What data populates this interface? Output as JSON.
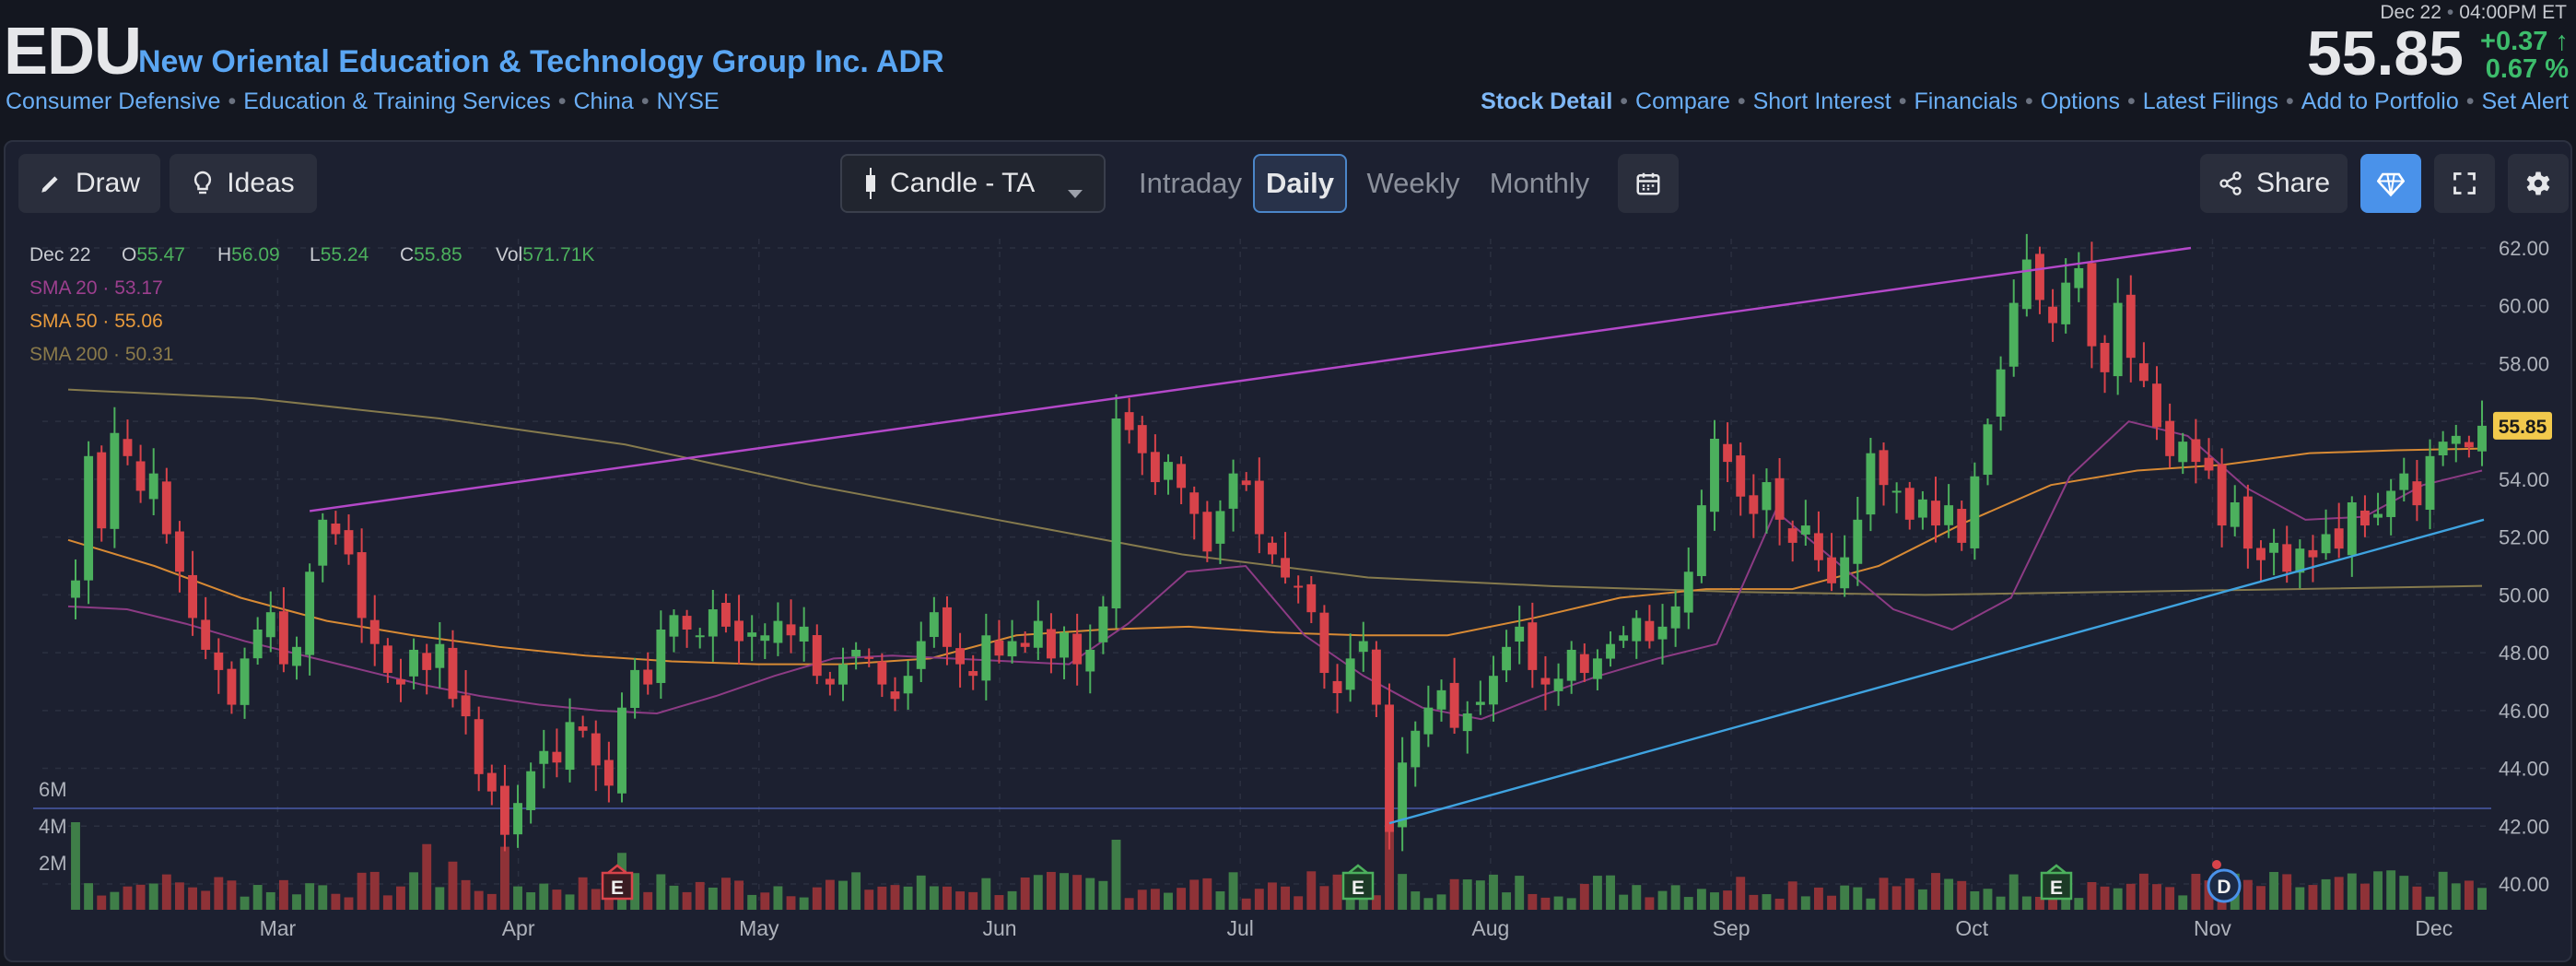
{
  "header": {
    "ticker": "EDU",
    "company": "New Oriental Education & Technology Group Inc. ADR",
    "breadcrumbs": [
      "Consumer Defensive",
      "Education & Training Services",
      "China",
      "NYSE"
    ],
    "date": "Dec 22",
    "time": "04:00PM ET",
    "price": "55.85",
    "change": "+0.37",
    "change_pct": "0.67 %",
    "links": [
      "Stock Detail",
      "Compare",
      "Short Interest",
      "Financials",
      "Options",
      "Latest Filings",
      "Add to Portfolio",
      "Set Alert"
    ]
  },
  "toolbar": {
    "draw": "Draw",
    "ideas": "Ideas",
    "chart_type": "Candle - TA",
    "tabs": [
      "Intraday",
      "Daily",
      "Weekly",
      "Monthly"
    ],
    "active_tab": "Daily",
    "share": "Share"
  },
  "legend": {
    "date": "Dec 22",
    "ohlc": [
      {
        "k": "O",
        "v": "55.47"
      },
      {
        "k": "H",
        "v": "56.09"
      },
      {
        "k": "L",
        "v": "55.24"
      },
      {
        "k": "C",
        "v": "55.85"
      },
      {
        "k": "Vol",
        "v": "571.71K"
      }
    ],
    "sma": [
      {
        "label": "SMA 20",
        "value": "53.17",
        "color": "#9c3f8e"
      },
      {
        "label": "SMA 50",
        "value": "55.06",
        "color": "#e89a3c"
      },
      {
        "label": "SMA 200",
        "value": "50.31",
        "color": "#8a7a4a"
      }
    ]
  },
  "chart_data": {
    "type": "candlestick",
    "price_axis": {
      "min": 40,
      "max": 62,
      "ticks": [
        "62.00",
        "60.00",
        "58.00",
        "56.00",
        "54.00",
        "52.00",
        "50.00",
        "48.00",
        "46.00",
        "44.00",
        "42.00",
        "40.00"
      ]
    },
    "volume_axis": {
      "ticks": [
        "6M",
        "4M",
        "2M"
      ]
    },
    "x_labels": [
      "Mar",
      "Apr",
      "May",
      "Jun",
      "Jul",
      "Aug",
      "Sep",
      "Oct",
      "Nov",
      "Dec"
    ],
    "last_price_label": "55.85",
    "colors": {
      "up": "#4cb05d",
      "down": "#d8434a",
      "upper_trend": "#b448c9",
      "lower_trend": "#3fa3e0"
    },
    "closes": [
      50.5,
      54.8,
      52.3,
      55.6,
      54.8,
      53.6,
      54.2,
      52.1,
      50.8,
      49.2,
      48.1,
      47.4,
      46.2,
      47.8,
      48.8,
      49.4,
      47.6,
      48.2,
      50.8,
      52.6,
      52.1,
      51.4,
      49.2,
      48.3,
      47.3,
      46.9,
      48.1,
      47.4,
      48.3,
      46.4,
      45.8,
      43.8,
      43.2,
      41.7,
      42.8,
      43.9,
      44.6,
      44.2,
      45.6,
      45.3,
      44.1,
      43.4,
      46.1,
      47.4,
      46.9,
      48.8,
      49.3,
      48.8,
      48.6,
      49.5,
      48.9,
      48.4,
      48.7,
      48.6,
      49.1,
      48.6,
      48.9,
      47.2,
      46.9,
      47.6,
      48.1,
      47.8,
      46.9,
      46.4,
      47.2,
      48.4,
      49.4,
      48.2,
      47.6,
      47.2,
      48.6,
      47.9,
      48.4,
      48.2,
      49.1,
      47.8,
      48.7,
      47.6,
      48.1,
      49.6,
      56.1,
      55.7,
      54.9,
      53.9,
      54.6,
      53.7,
      52.8,
      51.5,
      52.9,
      54.2,
      53.8,
      52.1,
      51.4,
      50.6,
      50.3,
      49.4,
      47.3,
      46.6,
      47.8,
      48.4,
      46.2,
      41.8,
      44.2,
      45.3,
      46.1,
      46.7,
      45.4,
      45.9,
      46.3,
      47.2,
      48.2,
      48.9,
      47.4,
      46.9,
      47.1,
      48.1,
      47.3,
      47.8,
      48.3,
      48.6,
      49.2,
      48.4,
      48.9,
      49.6,
      50.8,
      53.1,
      55.4,
      54.6,
      53.4,
      52.8,
      53.9,
      52.6,
      51.8,
      52.4,
      51.2,
      50.4,
      51.3,
      52.6,
      54.9,
      53.8,
      53.6,
      52.6,
      53.3,
      52.4,
      53.1,
      51.8,
      54.1,
      55.9,
      57.8,
      60.1,
      61.6,
      60.2,
      59.4,
      60.8,
      61.3,
      58.6,
      57.7,
      60.1,
      58.2,
      57.4,
      55.8,
      54.8,
      55.3,
      54.6,
      54.3,
      52.4,
      53.2,
      51.6,
      51.2,
      51.8,
      50.8,
      51.6,
      51.3,
      52.1,
      51.6,
      53.2,
      52.4,
      52.8,
      53.6,
      54.2,
      53.1,
      54.8,
      55.3,
      55.5,
      55.1,
      55.85
    ],
    "sma20_approx": [
      49.6,
      49.5,
      49.0,
      48.4,
      47.9,
      47.4,
      46.9,
      46.5,
      46.2,
      46.0,
      45.9,
      46.5,
      47.2,
      47.8,
      47.9,
      47.8,
      47.7,
      47.6,
      49.0,
      50.8,
      51.0,
      48.6,
      47.2,
      46.1,
      45.7,
      46.5,
      47.2,
      47.8,
      48.3,
      52.9,
      51.2,
      49.5,
      48.8,
      49.9,
      54.1,
      56.0,
      55.5,
      53.7,
      52.6,
      52.7,
      53.8,
      54.3
    ],
    "sma50_approx": [
      51.9,
      51.0,
      49.9,
      49.1,
      48.6,
      48.2,
      47.9,
      47.7,
      47.6,
      47.6,
      47.8,
      48.6,
      48.8,
      48.9,
      48.7,
      48.6,
      48.6,
      49.2,
      49.9,
      50.2,
      50.2,
      51.0,
      52.5,
      53.8,
      54.3,
      54.5,
      54.9,
      55.0,
      55.06
    ],
    "sma200_approx": [
      57.1,
      56.8,
      56.1,
      55.2,
      53.8,
      52.6,
      51.4,
      50.6,
      50.3,
      50.1,
      50.0,
      50.1,
      50.2,
      50.31
    ]
  }
}
